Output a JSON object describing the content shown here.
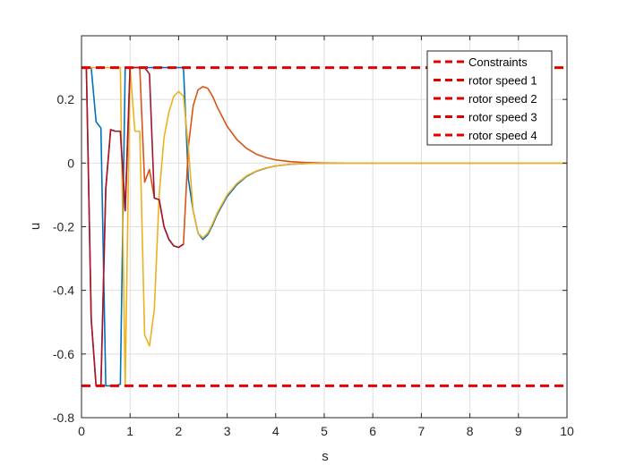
{
  "chart_data": {
    "type": "line",
    "title": "",
    "xlabel": "s",
    "ylabel": "u",
    "xlim": [
      0,
      10
    ],
    "ylim": [
      -0.8,
      0.4
    ],
    "xticks": [
      "0",
      "1",
      "2",
      "3",
      "4",
      "5",
      "6",
      "7",
      "8",
      "9",
      "10"
    ],
    "xtick_values": [
      0,
      1,
      2,
      3,
      4,
      5,
      6,
      7,
      8,
      9,
      10
    ],
    "yticks": [
      "-0.8",
      "-0.6",
      "-0.4",
      "-0.2",
      "0",
      "0.2"
    ],
    "ytick_values": [
      -0.8,
      -0.6,
      -0.4,
      -0.2,
      0,
      0.2
    ],
    "grid": true,
    "legend_position": "top-right",
    "constraints": {
      "name": "Constraints",
      "color": "#e00000",
      "upper": 0.3,
      "lower": -0.7
    },
    "series": [
      {
        "name": "rotor speed 1",
        "color": "#0072bd",
        "x": [
          0,
          0.1,
          0.2,
          0.3,
          0.4,
          0.5,
          0.6,
          0.7,
          0.8,
          0.9,
          1.0,
          1.1,
          1.2,
          1.3,
          1.5,
          1.7,
          1.9,
          2.1,
          2.2,
          2.3,
          2.4,
          2.5,
          2.6,
          2.7,
          2.8,
          3.0,
          3.2,
          3.4,
          3.6,
          3.8,
          4.0,
          4.3,
          4.6,
          5.0,
          5.5,
          10
        ],
        "y": [
          0.3,
          0.3,
          0.3,
          0.13,
          0.11,
          -0.7,
          -0.7,
          -0.7,
          -0.695,
          0.3,
          0.3,
          0.3,
          0.3,
          0.3,
          0.3,
          0.3,
          0.3,
          0.3,
          -0.05,
          -0.15,
          -0.22,
          -0.24,
          -0.225,
          -0.195,
          -0.16,
          -0.105,
          -0.068,
          -0.042,
          -0.026,
          -0.016,
          -0.009,
          -0.004,
          -0.0015,
          -0.0004,
          0,
          0
        ]
      },
      {
        "name": "rotor speed 2",
        "color": "#d95319",
        "x": [
          0,
          0.1,
          0.2,
          0.3,
          0.4,
          0.5,
          0.6,
          0.7,
          0.8,
          0.9,
          1.0,
          1.1,
          1.2,
          1.3,
          1.4,
          1.5,
          1.6,
          1.7,
          1.8,
          1.9,
          2.0,
          2.1,
          2.2,
          2.3,
          2.4,
          2.5,
          2.6,
          2.7,
          2.8,
          3.0,
          3.2,
          3.4,
          3.6,
          3.8,
          4.0,
          4.3,
          4.6,
          5.0,
          5.5,
          10
        ],
        "y": [
          0.3,
          0.3,
          -0.49,
          -0.7,
          -0.7,
          -0.08,
          0.105,
          0.1,
          0.1,
          -0.15,
          0.3,
          0.3,
          0.3,
          -0.06,
          -0.02,
          -0.11,
          -0.115,
          -0.2,
          -0.24,
          -0.26,
          -0.265,
          -0.255,
          0.05,
          0.18,
          0.23,
          0.24,
          0.235,
          0.21,
          0.175,
          0.115,
          0.074,
          0.046,
          0.028,
          0.017,
          0.01,
          0.0045,
          0.0018,
          0.0005,
          0,
          0
        ]
      },
      {
        "name": "rotor speed 3",
        "color": "#edb120",
        "x": [
          0,
          0.1,
          0.2,
          0.3,
          0.4,
          0.5,
          0.6,
          0.7,
          0.8,
          0.9,
          1.0,
          1.1,
          1.2,
          1.3,
          1.4,
          1.5,
          1.6,
          1.7,
          1.8,
          1.9,
          2.0,
          2.1,
          2.2,
          2.3,
          2.4,
          2.5,
          2.6,
          2.7,
          2.8,
          3.0,
          3.2,
          3.4,
          3.6,
          3.8,
          4.0,
          4.3,
          4.6,
          5.0,
          5.5,
          10
        ],
        "y": [
          0.3,
          0.3,
          0.3,
          0.3,
          0.3,
          0.3,
          0.3,
          0.3,
          0.3,
          -0.7,
          0.3,
          0.1,
          0.1,
          -0.54,
          -0.575,
          -0.46,
          -0.1,
          0.08,
          0.16,
          0.21,
          0.225,
          0.21,
          0.05,
          -0.15,
          -0.22,
          -0.235,
          -0.22,
          -0.19,
          -0.155,
          -0.1,
          -0.064,
          -0.04,
          -0.025,
          -0.015,
          -0.009,
          -0.004,
          -0.0015,
          -0.0004,
          0,
          0
        ]
      },
      {
        "name": "rotor speed 4",
        "color": "#a2142f",
        "x": [
          0,
          0.1,
          0.2,
          0.3,
          0.4,
          0.5,
          0.6,
          0.7,
          0.8,
          0.9,
          1.0,
          1.1,
          1.2,
          1.3,
          1.4,
          1.5,
          1.6,
          1.7,
          1.8,
          1.9,
          2.0,
          2.1
        ],
        "y": [
          0.3,
          0.3,
          -0.49,
          -0.7,
          -0.7,
          -0.08,
          0.105,
          0.1,
          0.1,
          -0.15,
          0.3,
          0.3,
          0.3,
          0.3,
          0.28,
          -0.11,
          -0.115,
          -0.2,
          -0.24,
          -0.26,
          -0.265,
          -0.255
        ]
      }
    ]
  }
}
